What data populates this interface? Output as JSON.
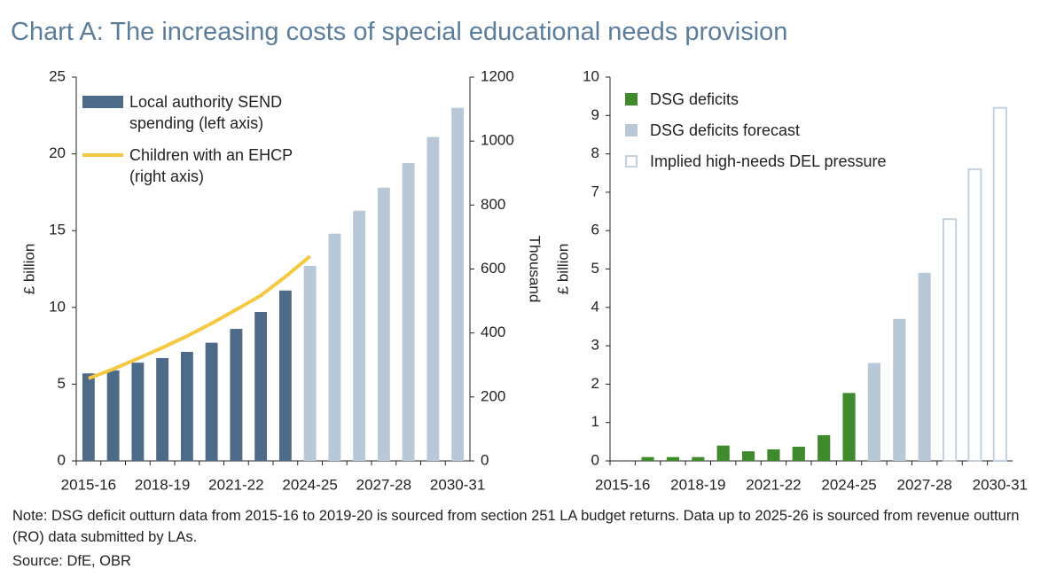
{
  "title": "Chart A: The increasing costs of special educational needs provision",
  "note": "Note: DSG deficit outturn data from 2015-16 to 2019-20 is sourced from section 251 LA budget returns. Data up to 2025-26 is sourced from revenue outturn (RO) data submitted by LAs.",
  "source": "Source: DfE, OBR",
  "chart_data": [
    {
      "type": "bar",
      "categories": [
        "2015-16",
        null,
        null,
        "2018-19",
        null,
        null,
        "2021-22",
        null,
        null,
        "2024-25",
        null,
        null,
        "2027-28",
        null,
        null,
        "2030-31"
      ],
      "ylabel": "£ billion",
      "y2label": "Thousand",
      "ylim": [
        0,
        25
      ],
      "yticks": [
        0,
        5,
        10,
        15,
        20,
        25
      ],
      "y2lim": [
        0,
        1200
      ],
      "y2ticks": [
        0,
        200,
        400,
        600,
        800,
        1000,
        1200
      ],
      "series": [
        {
          "name": "Local authority SEND spending (left axis)",
          "type": "bar",
          "color": "#4d6a89",
          "colors": [
            "#4d6a89",
            "#4d6a89",
            "#4d6a89",
            "#4d6a89",
            "#4d6a89",
            "#4d6a89",
            "#4d6a89",
            "#4d6a89",
            "#4d6a89",
            "#b9c8d7",
            "#b9c8d7",
            "#b9c8d7",
            "#b9c8d7",
            "#b9c8d7",
            "#b9c8d7",
            "#b9c8d7"
          ],
          "values": [
            5.7,
            5.9,
            6.4,
            6.7,
            7.1,
            7.7,
            8.6,
            9.7,
            11.1,
            12.7,
            14.8,
            16.3,
            17.8,
            19.4,
            21.1,
            23.0
          ]
        },
        {
          "name": "Children with an EHCP (right axis)",
          "type": "line",
          "axis": "y2",
          "color": "#f5c842",
          "values": [
            258,
            287,
            320,
            354,
            390,
            430,
            473,
            517,
            576,
            640,
            null,
            null,
            null,
            null,
            null,
            null
          ]
        }
      ]
    },
    {
      "type": "bar",
      "categories": [
        "2015-16",
        null,
        null,
        "2018-19",
        null,
        null,
        "2021-22",
        null,
        null,
        "2024-25",
        null,
        null,
        "2027-28",
        null,
        null,
        "2030-31"
      ],
      "ylabel": "£ billion",
      "ylim": [
        0,
        10
      ],
      "yticks": [
        0,
        1,
        2,
        3,
        4,
        5,
        6,
        7,
        8,
        9,
        10
      ],
      "series": [
        {
          "name": "DSG deficits",
          "type": "bar",
          "color": "#3e8a2c",
          "fill": true,
          "values": [
            null,
            0.1,
            0.1,
            0.1,
            0.4,
            0.25,
            0.3,
            0.37,
            0.67,
            1.77,
            null,
            null,
            null,
            null,
            null,
            null
          ]
        },
        {
          "name": "DSG deficits forecast",
          "type": "bar",
          "color": "#b9c8d7",
          "fill": true,
          "values": [
            null,
            null,
            null,
            null,
            null,
            null,
            null,
            null,
            null,
            null,
            2.55,
            3.7,
            4.9,
            null,
            null,
            null
          ]
        },
        {
          "name": "Implied high-needs DEL pressure",
          "type": "bar",
          "color": "#c3d1de",
          "fill": false,
          "values": [
            null,
            null,
            null,
            null,
            null,
            null,
            null,
            null,
            null,
            null,
            null,
            null,
            null,
            6.3,
            7.6,
            9.2
          ]
        }
      ]
    }
  ]
}
